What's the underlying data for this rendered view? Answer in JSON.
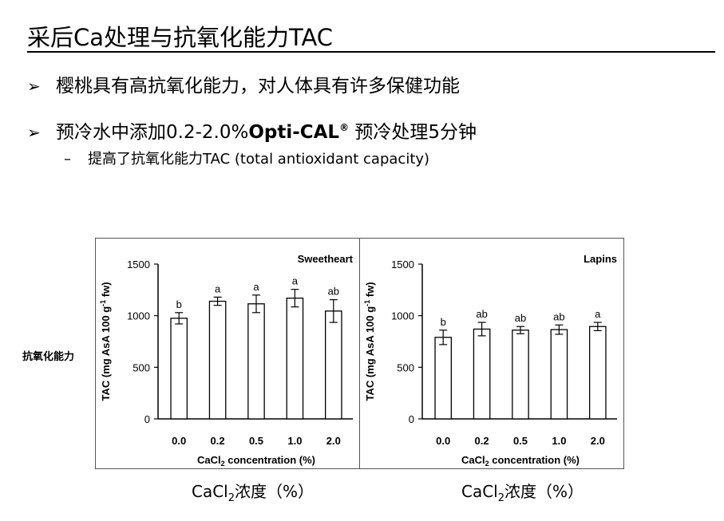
{
  "slide": {
    "title": "采后Ca处理与抗氧化能力TAC",
    "bullet1": "樱桃具有高抗氧化能力，对人体具有许多保健功能",
    "bullet2_prefix": "预冷水中添加0.2-2.0%",
    "bullet2_bold": "Opti-CAL",
    "bullet2_reg": "®",
    "bullet2_suffix": " 预冷处理5分钟",
    "sub_bullet": "提高了抗氧化能力TAC (total antioxidant capacity)",
    "side_label": "抗氧化能力",
    "caption_prefix": "CaCl",
    "caption_sub": "2",
    "caption_suffix": "浓度（%）",
    "arrow_icon": "➢",
    "dash": "–"
  },
  "chart_data": [
    {
      "type": "bar",
      "title": "Sweetheart",
      "ylabel_main": "TAC (mg AsA 100 g",
      "ylabel_sup": "-1",
      "ylabel_end": " fw)",
      "xlabel_pre": "CaCl",
      "xlabel_sub": "2",
      "xlabel_post": " concentration (%)",
      "categories": [
        "0.0",
        "0.2",
        "0.5",
        "1.0",
        "2.0"
      ],
      "values": [
        975,
        1140,
        1115,
        1170,
        1045
      ],
      "errors": [
        55,
        40,
        85,
        85,
        110
      ],
      "letters": [
        "b",
        "a",
        "a",
        "a",
        "ab"
      ],
      "ylim": [
        0,
        1500
      ],
      "yticks": [
        "0",
        "500",
        "1000",
        "1500"
      ],
      "bar_color": "#ffffff"
    },
    {
      "type": "bar",
      "title": "Lapins",
      "ylabel_main": "TAC (mg AsA 100 g",
      "ylabel_sup": "-1",
      "ylabel_end": " fw)",
      "xlabel_pre": "CaCl",
      "xlabel_sub": "2",
      "xlabel_post": " concentration (%)",
      "categories": [
        "0.0",
        "0.2",
        "0.5",
        "1.0",
        "2.0"
      ],
      "values": [
        790,
        870,
        860,
        865,
        895
      ],
      "errors": [
        70,
        65,
        35,
        45,
        40
      ],
      "letters": [
        "b",
        "ab",
        "ab",
        "ab",
        "a"
      ],
      "ylim": [
        0,
        1500
      ],
      "yticks": [
        "0",
        "500",
        "1000",
        "1500"
      ],
      "bar_color": "#ffffff"
    }
  ]
}
